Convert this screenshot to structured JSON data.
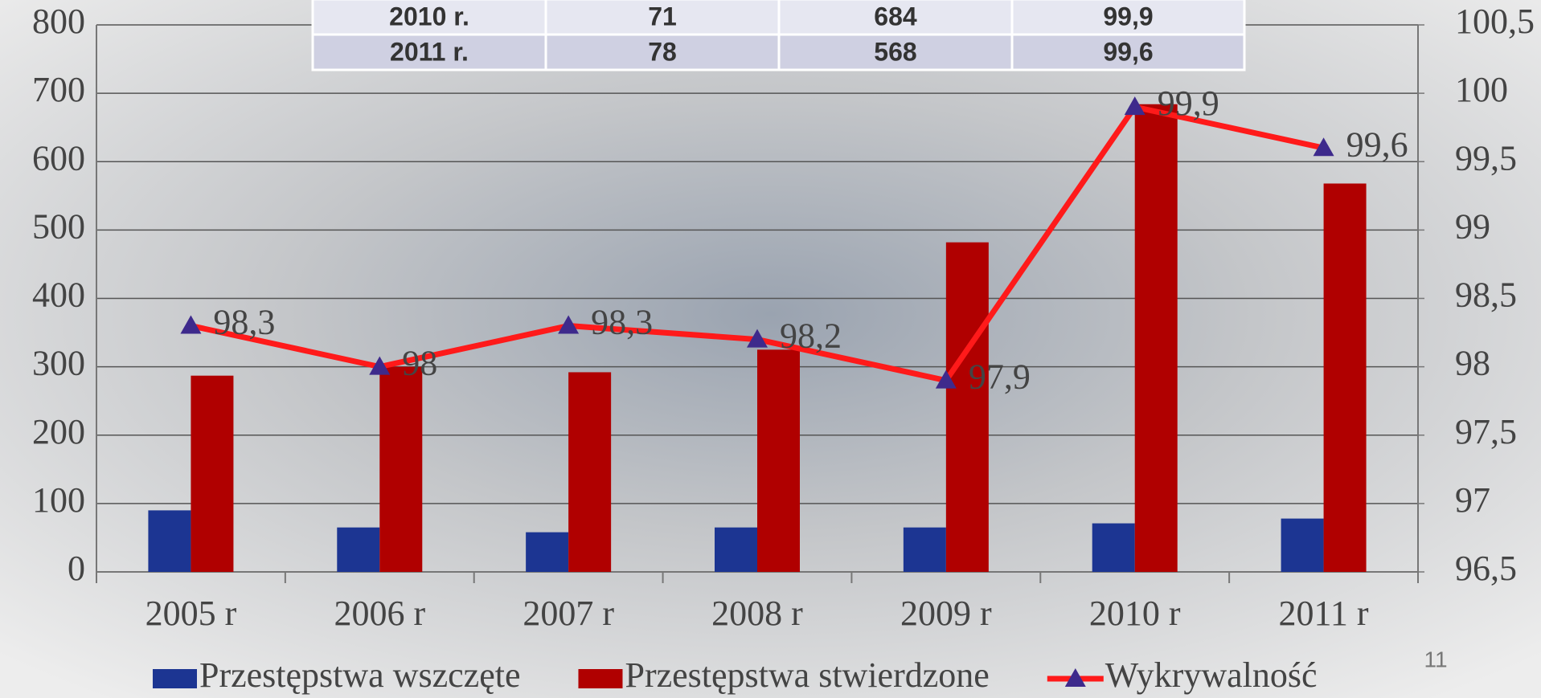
{
  "chart_data": {
    "type": "bar-line",
    "categories": [
      "2005 r",
      "2006 r",
      "2007 r",
      "2008 r",
      "2009 r",
      "2010 r",
      "2011 r"
    ],
    "series": [
      {
        "name": "Przestępstwa wszczęte",
        "type": "bar",
        "color": "#1c3592",
        "values": [
          90,
          65,
          58,
          65,
          65,
          71,
          78
        ]
      },
      {
        "name": "Przestępstwa stwierdzone",
        "type": "bar",
        "color": "#b00000",
        "values": [
          287,
          300,
          292,
          325,
          482,
          684,
          568
        ]
      },
      {
        "name": "Wykrywalność",
        "type": "line",
        "axis": "y2",
        "color": "#ff1a1a",
        "marker_color": "#3e2a8c",
        "values": [
          98.3,
          98,
          98.3,
          98.2,
          97.9,
          99.9,
          99.6
        ],
        "value_labels": [
          "98,3",
          "98",
          "98,3",
          "98,2",
          "97,9",
          "99,9",
          "99,6"
        ]
      }
    ],
    "ylim": [
      0,
      800
    ],
    "yticks": [
      0,
      100,
      200,
      300,
      400,
      500,
      600,
      700,
      800
    ],
    "y2lim": [
      96.5,
      100.5
    ],
    "y2ticks": [
      {
        "value": 96.5,
        "label": "96,5"
      },
      97,
      {
        "value": 97.5,
        "label": "97,5"
      },
      98,
      {
        "value": 98.5,
        "label": "98,5"
      },
      99,
      {
        "value": 99.5,
        "label": "99,5"
      },
      100,
      {
        "value": 100.5,
        "label": "100,5"
      }
    ],
    "grid": true,
    "legend": "bottom"
  },
  "table": {
    "rows": [
      [
        "2010 r.",
        "71",
        "684",
        "99,9"
      ],
      [
        "2011 r.",
        "78",
        "568",
        "99,6"
      ]
    ]
  },
  "page_number": "11"
}
